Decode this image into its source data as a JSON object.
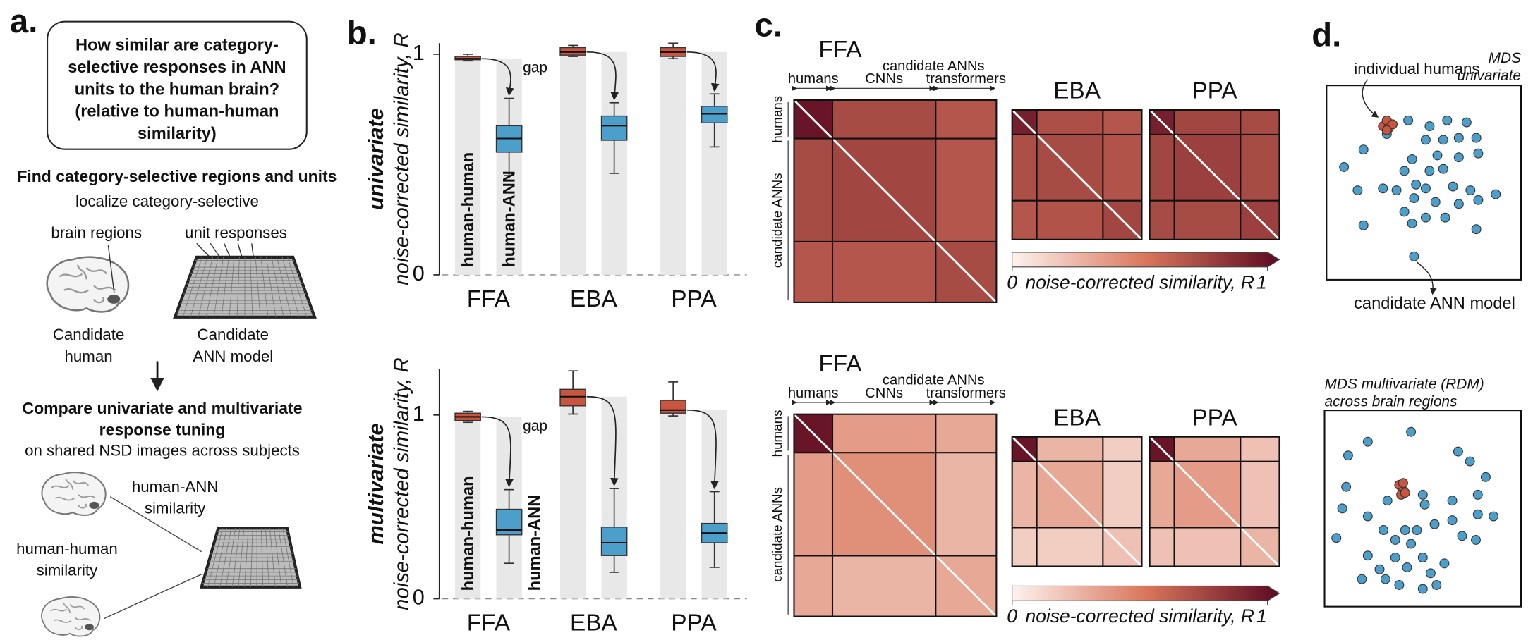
{
  "panel_labels": [
    "a.",
    "b.",
    "c.",
    "d."
  ],
  "panel_a": {
    "question": [
      "How similar are category-",
      "selective responses in ANN",
      "units to the human brain?",
      "(relative to human-human",
      "similarity)"
    ],
    "step1_title": "Find category-selective regions and units",
    "localize": "localize category-selective",
    "brain_regions": "brain regions",
    "unit_responses": "unit responses",
    "candidate_human": [
      "Candidate",
      "human"
    ],
    "candidate_ann": [
      "Candidate",
      "ANN model"
    ],
    "step2_title": [
      "Compare univariate and multivariate",
      "response tuning"
    ],
    "step2_subtitle": "on shared NSD images across subjects",
    "human_ann": [
      "human-ANN",
      "similarity"
    ],
    "human_human": [
      "human-human",
      "similarity"
    ]
  },
  "chart_data": [
    {
      "type": "box",
      "title": "univariate",
      "y_label": "noise-corrected similarity, R",
      "categories": [
        "FFA",
        "EBA",
        "PPA"
      ],
      "ylim": [
        0,
        1.05
      ],
      "yticks": [
        0,
        1
      ],
      "annotation": "gap",
      "series": [
        {
          "name": "human-human",
          "color": "#c8553d",
          "boxes": [
            {
              "whislo": 0.97,
              "q1": 0.975,
              "med": 0.98,
              "q3": 0.99,
              "whishi": 1.0
            },
            {
              "whislo": 0.99,
              "q1": 0.996,
              "med": 1.01,
              "q3": 1.03,
              "whishi": 1.04
            },
            {
              "whislo": 0.98,
              "q1": 0.99,
              "med": 1.01,
              "q3": 1.03,
              "whishi": 1.05
            }
          ]
        },
        {
          "name": "human-ANN",
          "color": "#4d9fcb",
          "boxes": [
            {
              "whislo": 0.45,
              "q1": 0.556,
              "med": 0.618,
              "q3": 0.676,
              "whishi": 0.8
            },
            {
              "whislo": 0.46,
              "q1": 0.61,
              "med": 0.676,
              "q3": 0.72,
              "whishi": 0.78
            },
            {
              "whislo": 0.58,
              "q1": 0.689,
              "med": 0.73,
              "q3": 0.764,
              "whishi": 0.82
            }
          ]
        }
      ]
    },
    {
      "type": "box",
      "title": "multivariate",
      "y_label": "noise-corrected similarity, R",
      "categories": [
        "FFA",
        "EBA",
        "PPA"
      ],
      "ylim": [
        0,
        1.25
      ],
      "yticks": [
        0,
        1
      ],
      "annotation": "gap",
      "series": [
        {
          "name": "human-human",
          "color": "#c8553d",
          "boxes": [
            {
              "whislo": 0.96,
              "q1": 0.97,
              "med": 0.99,
              "q3": 1.01,
              "whishi": 1.02
            },
            {
              "whislo": 1.005,
              "q1": 1.05,
              "med": 1.1,
              "q3": 1.14,
              "whishi": 1.24
            },
            {
              "whislo": 0.995,
              "q1": 1.01,
              "med": 1.027,
              "q3": 1.08,
              "whishi": 1.18
            }
          ]
        },
        {
          "name": "human-ANN",
          "color": "#4d9fcb",
          "boxes": [
            {
              "whislo": 0.193,
              "q1": 0.348,
              "med": 0.374,
              "q3": 0.487,
              "whishi": 0.594
            },
            {
              "whislo": 0.144,
              "q1": 0.235,
              "med": 0.305,
              "q3": 0.39,
              "whishi": 0.6
            },
            {
              "whislo": 0.171,
              "q1": 0.305,
              "med": 0.358,
              "q3": 0.41,
              "whishi": 0.583
            }
          ]
        }
      ]
    },
    {
      "type": "heatmap",
      "title": "FFA",
      "group_header": "candidate ANNs",
      "groups": [
        "humans",
        "CNNs",
        "transformers"
      ],
      "row_groups": [
        "humans",
        "candidate ANNs"
      ],
      "values": [
        [
          0.95,
          0.7,
          0.65
        ],
        [
          0.7,
          0.72,
          0.65
        ],
        [
          0.65,
          0.65,
          0.7
        ]
      ]
    },
    {
      "type": "heatmap",
      "title": "EBA",
      "values": [
        [
          0.9,
          0.68,
          0.65
        ],
        [
          0.68,
          0.7,
          0.66
        ],
        [
          0.65,
          0.66,
          0.72
        ]
      ]
    },
    {
      "type": "heatmap",
      "title": "PPA",
      "values": [
        [
          0.9,
          0.72,
          0.7
        ],
        [
          0.72,
          0.75,
          0.7
        ],
        [
          0.7,
          0.7,
          0.75
        ]
      ]
    },
    {
      "type": "colorbar",
      "label": "noise-corrected similarity, R",
      "clim": [
        0,
        1
      ],
      "ticks": [
        0,
        1
      ],
      "colormap": [
        "#fdf3ee",
        "#d9765c",
        "#5c0a22"
      ]
    },
    {
      "type": "heatmap",
      "title": "FFA",
      "group_header": "candidate ANNs",
      "groups": [
        "humans",
        "CNNs",
        "transformers"
      ],
      "row_groups": [
        "humans",
        "candidate ANNs"
      ],
      "values": [
        [
          0.95,
          0.35,
          0.3
        ],
        [
          0.35,
          0.4,
          0.25
        ],
        [
          0.3,
          0.25,
          0.3
        ]
      ]
    },
    {
      "type": "heatmap",
      "title": "EBA",
      "values": [
        [
          0.95,
          0.25,
          0.15
        ],
        [
          0.25,
          0.3,
          0.15
        ],
        [
          0.15,
          0.15,
          0.2
        ]
      ]
    },
    {
      "type": "heatmap",
      "title": "PPA",
      "values": [
        [
          0.95,
          0.3,
          0.2
        ],
        [
          0.3,
          0.35,
          0.2
        ],
        [
          0.2,
          0.2,
          0.25
        ]
      ]
    },
    {
      "type": "colorbar",
      "label": "noise-corrected similarity, R",
      "clim": [
        0,
        1
      ],
      "ticks": [
        0,
        1
      ],
      "colormap": [
        "#fdf3ee",
        "#d9765c",
        "#5c0a22"
      ]
    },
    {
      "type": "scatter",
      "title": [
        "MDS",
        "univariate"
      ],
      "xlim": [
        0,
        100
      ],
      "ylim": [
        0,
        100
      ],
      "series": [
        {
          "name": "individual humans",
          "color": "#c8553d",
          "x": [
            29,
            31,
            32,
            34,
            31
          ],
          "y": [
            79,
            82,
            78,
            80,
            77
          ]
        },
        {
          "name": "candidate ANN model",
          "color": "#4d9fcb",
          "x": [
            19,
            31,
            42,
            53,
            62,
            72,
            51,
            60,
            68,
            77,
            9,
            44,
            57,
            68,
            78,
            40,
            53,
            60,
            16,
            29,
            36,
            46,
            51,
            65,
            74,
            87,
            45,
            56,
            68,
            78,
            40,
            51,
            61,
            19,
            44,
            77,
            45
          ],
          "y": [
            67,
            75,
            82,
            79,
            82,
            81,
            72,
            72,
            73,
            73,
            58,
            62,
            64,
            63,
            65,
            56,
            56,
            57,
            46,
            47,
            46,
            49,
            47,
            48,
            46,
            44,
            42,
            40,
            39,
            41,
            35,
            32,
            32,
            28,
            29,
            26,
            12
          ]
        }
      ]
    },
    {
      "type": "scatter",
      "title": [
        "MDS multivariate (RDM)",
        "across brain regions"
      ],
      "xlim": [
        0,
        100
      ],
      "ylim": [
        0,
        100
      ],
      "series": [
        {
          "color": "#c8553d",
          "x": [
            38,
            40,
            39,
            41,
            40
          ],
          "y": [
            62,
            59,
            57,
            58,
            63
          ]
        },
        {
          "color": "#4d9fcb",
          "x": [
            22,
            44,
            68,
            74,
            12,
            82,
            11,
            9,
            22,
            6,
            30,
            41,
            47,
            56,
            65,
            78,
            86,
            50,
            51,
            65,
            78,
            36,
            44,
            70,
            77,
            22,
            36,
            50,
            61,
            28,
            42,
            54,
            19,
            31,
            38,
            50,
            57,
            32
          ],
          "y": [
            84,
            89,
            79,
            74,
            77,
            66,
            61,
            50,
            46,
            35,
            39,
            39,
            39,
            42,
            44,
            47,
            46,
            57,
            52,
            54,
            57,
            34,
            32,
            36,
            34,
            26,
            25,
            25,
            22,
            19,
            20,
            17,
            14,
            14,
            11,
            9,
            11,
            54
          ]
        }
      ]
    }
  ]
}
